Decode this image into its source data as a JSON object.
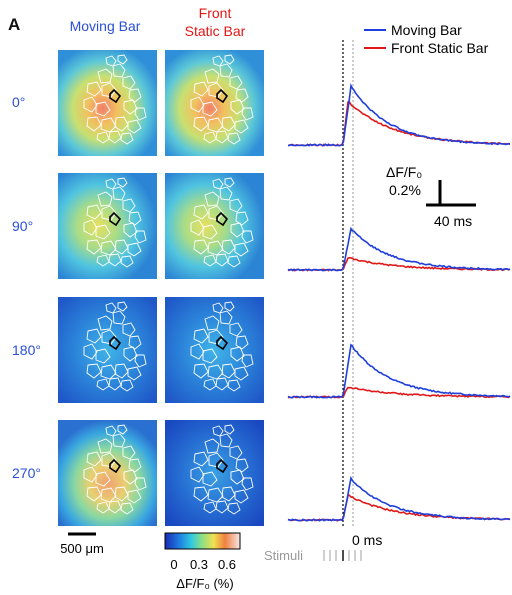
{
  "panel_label": "A",
  "column_headers": {
    "moving": "Moving Bar",
    "static_line1": "Front",
    "static_line2": "Static Bar"
  },
  "colors": {
    "moving": "#1f3fdc",
    "static": "#e01818",
    "angle_label": "#2a4fd8",
    "stim_grey": "#999999"
  },
  "rows": [
    {
      "angle": "0°",
      "peak_moving": 0.47,
      "peak_static": 0.35
    },
    {
      "angle": "90°",
      "peak_moving": 0.33,
      "peak_static": 0.1
    },
    {
      "angle": "180°",
      "peak_moving": 0.42,
      "peak_static": 0.08
    },
    {
      "angle": "270°",
      "peak_moving": 0.33,
      "peak_static": 0.2
    }
  ],
  "legend": {
    "moving": "Moving Bar",
    "static": "Front Static Bar"
  },
  "scalebar_trace": {
    "ylabel_line1": "ΔF/F₀",
    "ylabel_line2": "0.2%",
    "xlabel": "40 ms"
  },
  "scalebar_image": "500 μm",
  "colorbar": {
    "ticks": [
      "0",
      "0.3",
      "0.6"
    ],
    "label": "ΔF/F₀ (%)"
  },
  "time_zero_label": "0 ms",
  "stimuli_label": "Stimuli"
}
